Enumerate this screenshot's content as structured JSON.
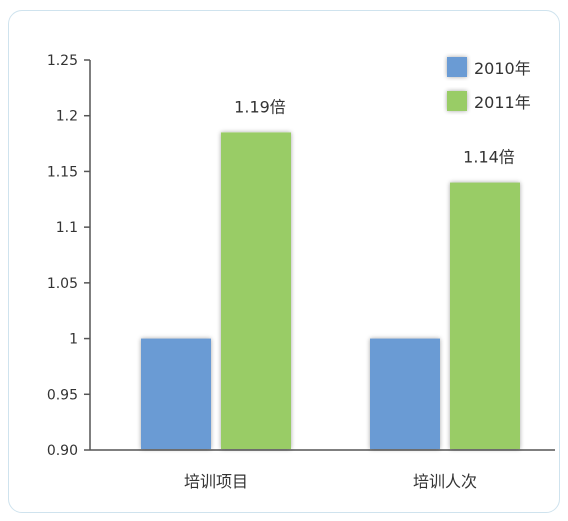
{
  "chart_data": {
    "type": "bar",
    "categories": [
      "培训项目",
      "培训人次"
    ],
    "series": [
      {
        "name": "2010年",
        "values": [
          1,
          1
        ],
        "color": "#6b9bd4"
      },
      {
        "name": "2011年",
        "values": [
          1.185,
          1.14
        ],
        "color": "#99cc66"
      }
    ],
    "data_labels": [
      "1.19倍",
      "1.14倍"
    ],
    "yticks": [
      "0.90",
      "0.95",
      "1",
      "1.05",
      "1.1",
      "1.15",
      "1.2",
      "1.25"
    ],
    "ylim": [
      0.9,
      1.25
    ],
    "title": "",
    "xlabel": "",
    "ylabel": "",
    "grid": false,
    "legend_position": "top-right"
  }
}
